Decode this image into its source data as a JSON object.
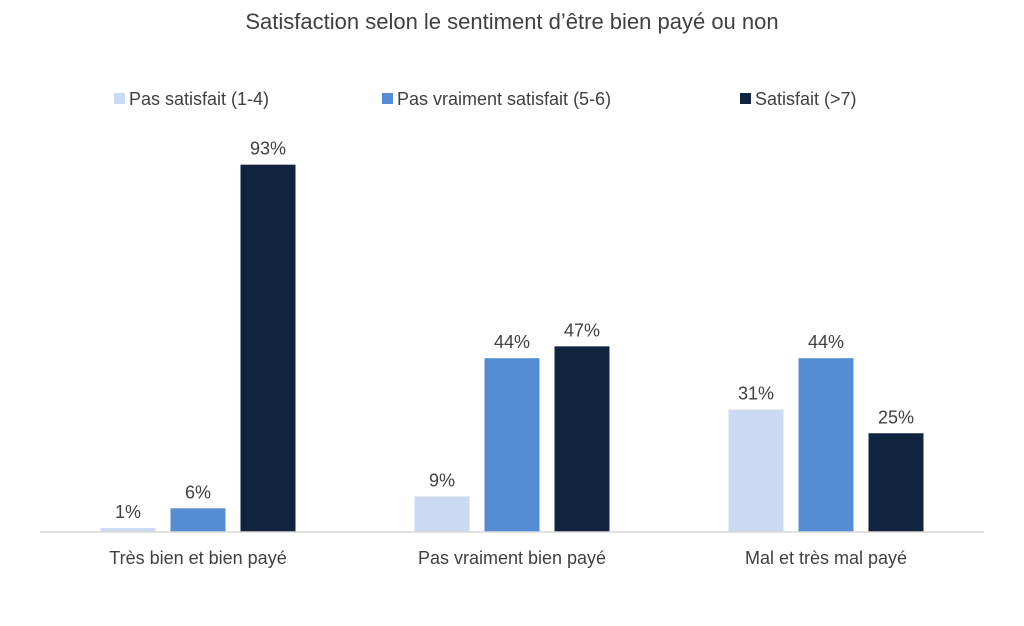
{
  "chart_data": {
    "type": "bar",
    "title": "Satisfaction selon le sentiment d’être bien payé ou non",
    "categories": [
      "Très bien et bien payé",
      "Pas vraiment bien payé",
      "Mal et très mal payé"
    ],
    "series": [
      {
        "name": "Pas satisfait (1-4)",
        "values": [
          1,
          9,
          31
        ],
        "labels": [
          "1%",
          "9%",
          "31%"
        ],
        "color": "#c9daf2"
      },
      {
        "name": "Pas vraiment satisfait (5-6)",
        "values": [
          6,
          44,
          44
        ],
        "labels": [
          "6%",
          "44%",
          "44%"
        ],
        "color": "#548dd4"
      },
      {
        "name": "Satisfait (>7)",
        "values": [
          93,
          47,
          25
        ],
        "labels": [
          "93%",
          "47%",
          "25%"
        ],
        "color": "#10243f"
      }
    ],
    "ylim": [
      0,
      100
    ],
    "legend_position": "top",
    "grid": false
  }
}
